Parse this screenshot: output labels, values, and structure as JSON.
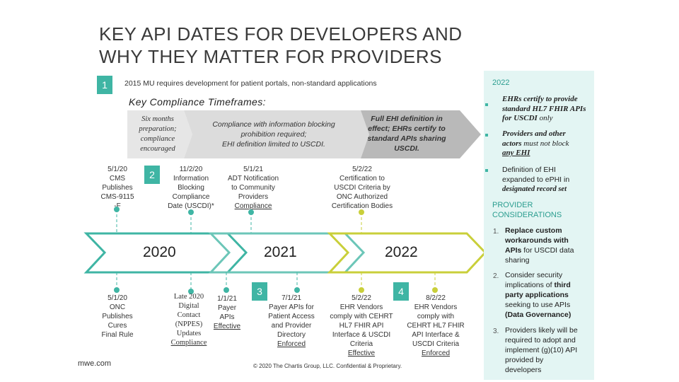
{
  "title_line1": "KEY API DATES FOR DEVELOPERS AND",
  "title_line2": "WHY THEY MATTER FOR PROVIDERS",
  "badge1": "1",
  "mu_text": "2015 MU requires development for patient portals, non-standard applications",
  "key_compliance": "Key Compliance Timeframes:",
  "arrow_seg1": [
    "Six months",
    "preparation;",
    "compliance",
    "encouraged"
  ],
  "arrow_seg2": [
    "Compliance with information blocking",
    "prohibition required;",
    "EHI definition limited to USCDI."
  ],
  "arrow_seg3": [
    "Full EHI definition in",
    "effect; EHRs certify to",
    "standard APIs sharing",
    "USCDI."
  ],
  "badge2": "2",
  "badge3": "3",
  "badge4": "4",
  "top_events": {
    "cms": [
      "5/1/20",
      "CMS",
      "Publishes",
      "CMS-9115",
      "-F"
    ],
    "info_blocking": [
      "11/2/20",
      "Information",
      "Blocking",
      "Compliance",
      "Date (USCDI)*"
    ],
    "adt": [
      "5/1/21",
      "ADT Notification",
      "to Community",
      "Providers",
      "Compliance"
    ],
    "cert": [
      "5/2/22",
      "Certification to",
      "USCDI Criteria by",
      "ONC Authorized",
      "Certification Bodies"
    ]
  },
  "years": [
    "2020",
    "2021",
    "2022"
  ],
  "bottom_events": {
    "onc": [
      "5/1/20",
      "ONC",
      "Publishes",
      "Cures",
      "Final Rule"
    ],
    "late2020": [
      "Late 2020",
      "Digital",
      "Contact",
      "(NPPES)",
      "Updates",
      "Compliance"
    ],
    "payer_api": [
      "1/1/21",
      "Payer",
      "APIs",
      "Effective"
    ],
    "payer_access": [
      "7/1/21",
      "Payer APIs for",
      "Patient Access",
      "and Provider",
      "Directory",
      "Enforced"
    ],
    "ehr_vendors1": [
      "5/2/22",
      "EHR Vendors",
      "comply with CEHRT",
      "HL7 FHIR API",
      "Interface & USCDI",
      "Criteria",
      "Effective"
    ],
    "ehr_vendors2": [
      "8/2/22",
      "EHR Vendors",
      "comply with",
      "CEHRT HL7 FHIR",
      "API Interface &",
      "USCDI Criteria",
      "Enforced"
    ]
  },
  "footer_left": "mwe.com",
  "footer_copyright": "© 2020 The Chartis Group, LLC. Confidential & Proprietary.",
  "side": {
    "year": "2022",
    "b1": [
      "EHRs certify to provide",
      "standard HL7 FHIR APIs",
      "for USCDI",
      " only"
    ],
    "b2": [
      "Providers and other",
      "actors ",
      "must not block",
      "any EHI"
    ],
    "b3": [
      "Definition of EHI",
      "expanded to e",
      "PHI in",
      "designated record set"
    ],
    "heading": [
      "PROVIDER",
      "CONSIDERATIONS"
    ],
    "c1_num": "1.",
    "c1": [
      "Replace custom",
      "workarounds with",
      "APIs",
      " for USCDI data",
      "sharing"
    ],
    "c2_num": "2.",
    "c2": [
      "Consider security",
      "implications of ",
      "third",
      "party applications",
      "seeking to use APIs",
      "(Data Governance)"
    ],
    "c3_num": "3.",
    "c3": [
      "Providers likely will be",
      "required to adopt and",
      "implement (g)(10) API",
      "provided by",
      "developers"
    ]
  },
  "colors": {
    "teal": "#3fb5a4",
    "lime": "#c9cf3a",
    "arrow_grey": "#d6d6d6",
    "arrow_dark": "#b0b0b0",
    "panel": "#e3f5f3"
  }
}
